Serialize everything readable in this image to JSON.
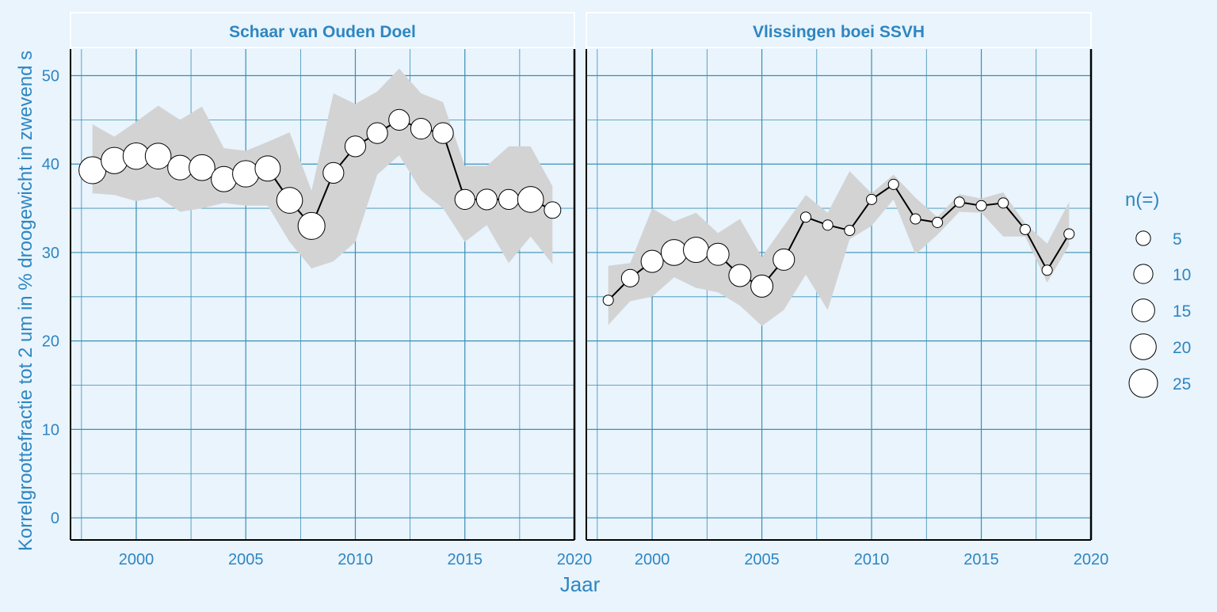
{
  "chart_data": {
    "type": "line",
    "ylabel": "Korrelgroottefractie tot 2 um in % droogewicht in zwevend s",
    "xlabel": "Jaar",
    "legend": {
      "title": "n(=)",
      "sizes": [
        5,
        10,
        15,
        20,
        25
      ],
      "labels": [
        "5",
        "10",
        "15",
        "20",
        "25"
      ],
      "placement": "right"
    },
    "xlim": [
      1997,
      2020
    ],
    "ylim": [
      -2.5,
      53
    ],
    "x_ticks": [
      2000,
      2005,
      2010,
      2015,
      2020
    ],
    "x_tick_labels": [
      "2000",
      "2005",
      "2010",
      "2015",
      "2020"
    ],
    "y_ticks": [
      0,
      10,
      20,
      30,
      40,
      50
    ],
    "y_tick_labels": [
      "0",
      "10",
      "20",
      "30",
      "40",
      "50"
    ],
    "grid": true,
    "colors": {
      "background": "#e9f4fd",
      "grid": "#3a8fb5",
      "ribbon": "#d3d3d3",
      "text": "#2e86c1",
      "line": "#000000",
      "point_fill": "#ffffff"
    },
    "panels": [
      {
        "title": "Schaar van Ouden Doel",
        "x": [
          1998,
          1999,
          2000,
          2001,
          2002,
          2003,
          2004,
          2005,
          2006,
          2007,
          2008,
          2009,
          2010,
          2011,
          2012,
          2013,
          2014,
          2015,
          2016,
          2017,
          2018,
          2019
        ],
        "y": [
          39.3,
          40.4,
          40.9,
          40.9,
          39.6,
          39.6,
          38.3,
          38.9,
          39.5,
          35.9,
          33.0,
          39.0,
          42.0,
          43.5,
          45.0,
          44.0,
          43.5,
          36.0,
          36.0,
          36.0,
          36.0,
          34.8
        ],
        "n": [
          22,
          21,
          21,
          20,
          18,
          20,
          19,
          21,
          19,
          20,
          22,
          12,
          12,
          12,
          12,
          12,
          12,
          11,
          12,
          11,
          20,
          7
        ],
        "lower": [
          36.7,
          36.5,
          35.8,
          36.3,
          34.6,
          35.0,
          35.6,
          35.3,
          35.3,
          31.2,
          28.2,
          29.0,
          31.2,
          38.8,
          41.0,
          37.0,
          35.0,
          31.2,
          33.1,
          28.8,
          31.8,
          28.7
        ],
        "upper": [
          44.5,
          43.1,
          44.8,
          46.6,
          45.0,
          46.5,
          41.8,
          41.5,
          42.5,
          43.6,
          37.0,
          48.0,
          46.8,
          48.2,
          50.8,
          48.0,
          47.0,
          39.8,
          39.8,
          42.0,
          42.0,
          37.5
        ]
      },
      {
        "title": "Vlissingen boei SSVH",
        "x": [
          1998,
          1999,
          2000,
          2001,
          2002,
          2003,
          2004,
          2005,
          2006,
          2007,
          2008,
          2009,
          2010,
          2011,
          2012,
          2013,
          2014,
          2015,
          2016,
          2017,
          2018,
          2019
        ],
        "y": [
          24.6,
          27.1,
          29.0,
          30.0,
          30.3,
          29.8,
          27.4,
          26.2,
          29.2,
          34.0,
          33.1,
          32.5,
          36.0,
          37.7,
          33.8,
          33.4,
          35.7,
          35.3,
          35.6,
          32.6,
          28.0,
          32.1
        ],
        "n": [
          2,
          8,
          14,
          20,
          19,
          14,
          14,
          14,
          13,
          2,
          2,
          2,
          2,
          2,
          2,
          2,
          2,
          2,
          2,
          2,
          2,
          2
        ],
        "lower": [
          21.8,
          24.5,
          25.0,
          27.2,
          26.0,
          25.5,
          24.0,
          21.7,
          23.5,
          27.5,
          23.5,
          31.5,
          33.0,
          36.0,
          29.8,
          32.0,
          34.6,
          34.5,
          31.8,
          31.8,
          26.6,
          30.8
        ],
        "upper": [
          28.5,
          28.8,
          35.0,
          33.5,
          34.5,
          32.2,
          33.8,
          29.5,
          33.0,
          36.5,
          34.5,
          39.2,
          36.7,
          38.8,
          36.2,
          34.0,
          36.6,
          36.1,
          36.8,
          33.3,
          31.0,
          35.7
        ]
      }
    ]
  }
}
